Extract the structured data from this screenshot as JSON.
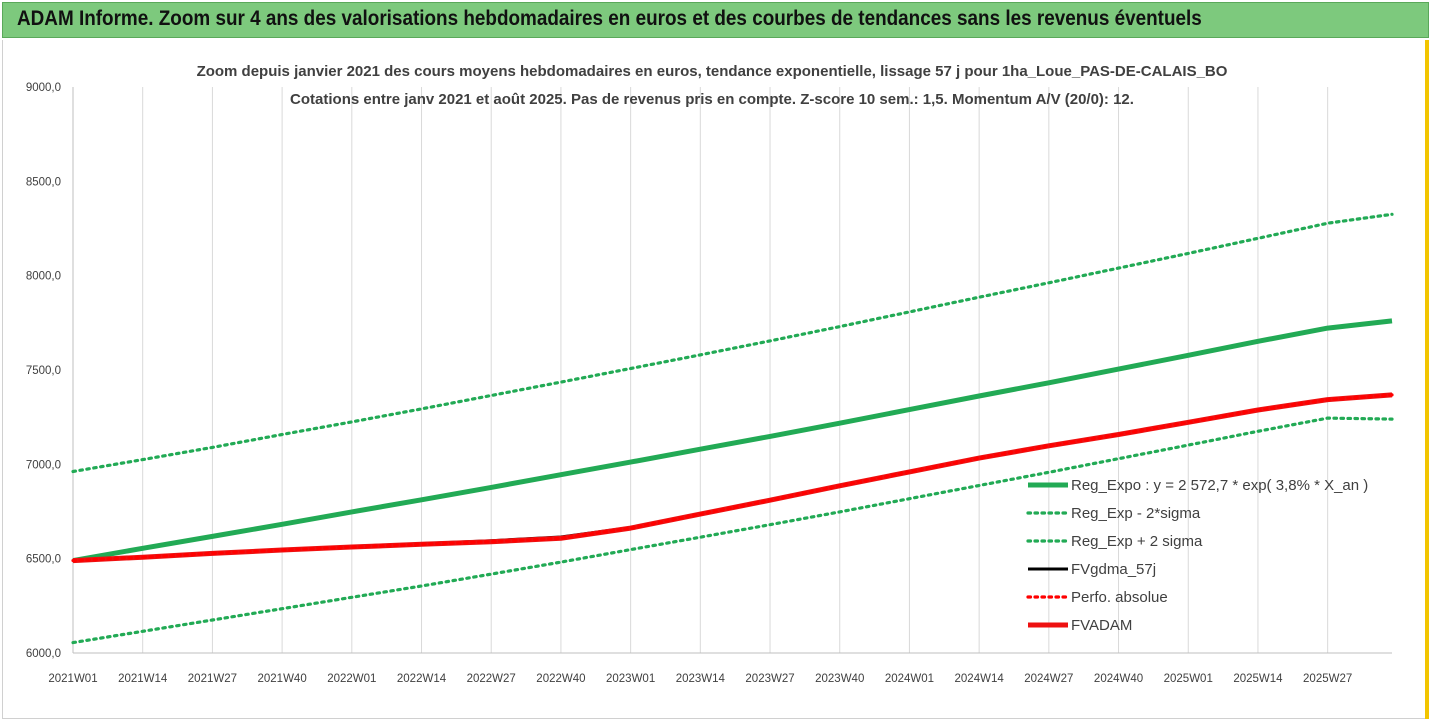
{
  "banner": {
    "title": "ADAM Informe. Zoom sur 4 ans des valorisations hebdomadaires en euros et des courbes de tendances sans les revenus éventuels"
  },
  "chart_data": {
    "type": "line",
    "title": "Zoom depuis janvier 2021 des cours moyens hebdomadaires en euros, tendance exponentielle, lissage 57 j pour 1ha_Loue_PAS-DE-CALAIS_BO",
    "subtitle": "Cotations entre janv 2021 et août 2025. Pas de revenus pris en compte. Z-score 10 sem.: 1,5. Momentum A/V (20/0): 12.",
    "xlabel": "",
    "ylabel": "",
    "ylim": [
      6000,
      9000
    ],
    "yticks": [
      "6000,0",
      "6500,0",
      "7000,0",
      "7500,0",
      "8000,0",
      "8500,0",
      "9000,0"
    ],
    "xticks": [
      "2021W01",
      "2021W14",
      "2021W27",
      "2021W40",
      "2022W01",
      "2022W14",
      "2022W27",
      "2022W40",
      "2023W01",
      "2023W14",
      "2023W27",
      "2023W40",
      "2024W01",
      "2024W14",
      "2024W27",
      "2024W40",
      "2025W01",
      "2025W14",
      "2025W27"
    ],
    "x_week_index": [
      0,
      13,
      26,
      39,
      52,
      65,
      78,
      91,
      104,
      117,
      130,
      143,
      156,
      169,
      182,
      195,
      208,
      221,
      234,
      246
    ],
    "grid": "vertical",
    "legend_position": "right",
    "series": [
      {
        "name": "Reg_Expo : y = 2 572,7 * exp( 3,8% *  X_an )",
        "color": "#22aa55",
        "style": "solid-thick",
        "values": [
          6490,
          6555,
          6618,
          6682,
          6748,
          6812,
          6878,
          6945,
          7012,
          7080,
          7148,
          7218,
          7290,
          7362,
          7432,
          7505,
          7578,
          7652,
          7722,
          7760
        ]
      },
      {
        "name": "Reg_Exp - 2*sigma",
        "color": "#22aa55",
        "style": "dotted",
        "values": [
          6055,
          6115,
          6175,
          6235,
          6295,
          6355,
          6418,
          6482,
          6548,
          6614,
          6680,
          6748,
          6818,
          6888,
          6958,
          7030,
          7102,
          7175,
          7245,
          7240
        ]
      },
      {
        "name": "Reg_Exp + 2 sigma",
        "color": "#22aa55",
        "style": "dotted",
        "values": [
          6962,
          7025,
          7090,
          7158,
          7225,
          7294,
          7365,
          7436,
          7508,
          7580,
          7654,
          7730,
          7808,
          7886,
          7962,
          8040,
          8118,
          8198,
          8278,
          8325
        ]
      },
      {
        "name": "FVgdma_57j",
        "color": "#000000",
        "style": "solid",
        "values": [
          6490,
          6510,
          6530,
          6548,
          6565,
          6580,
          6595,
          6615,
          6665,
          6738,
          6812,
          6888,
          6962,
          7035,
          7100,
          7160,
          7225,
          7290,
          7345,
          7370
        ]
      },
      {
        "name": "Perfo. absolue",
        "color": "#ff0000",
        "style": "dotted",
        "values": [
          6490,
          6508,
          6528,
          6546,
          6562,
          6576,
          6590,
          6608,
          6662,
          6736,
          6810,
          6886,
          6960,
          7033,
          7098,
          7158,
          7223,
          7288,
          7343,
          7368
        ]
      },
      {
        "name": "FVADAM",
        "color": "#ee1111",
        "style": "solid-thick",
        "values": [
          6490,
          6508,
          6528,
          6546,
          6562,
          6576,
          6590,
          6608,
          6662,
          6736,
          6810,
          6886,
          6960,
          7033,
          7098,
          7158,
          7223,
          7288,
          7343,
          7368
        ]
      }
    ]
  }
}
